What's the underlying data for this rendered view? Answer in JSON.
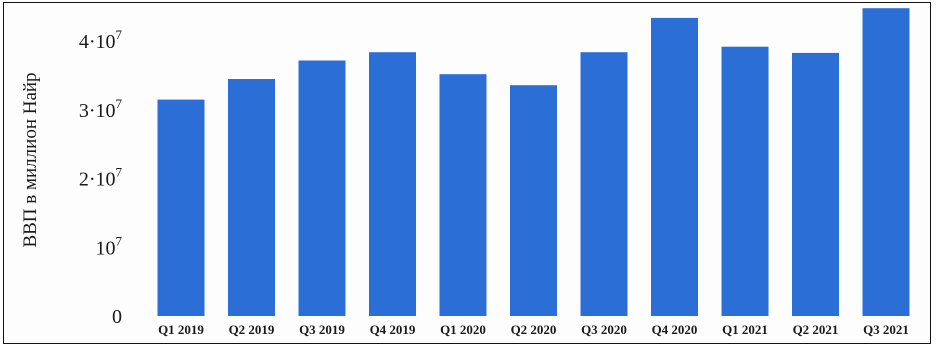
{
  "chart_data": {
    "type": "bar",
    "title": "",
    "xlabel": "",
    "ylabel": "ВВП в миллион Найр",
    "categories": [
      "Q1 2019",
      "Q2 2019",
      "Q3 2019",
      "Q4 2019",
      "Q1 2020",
      "Q2 2020",
      "Q3 2020",
      "Q4 2020",
      "Q1 2021",
      "Q2 2021",
      "Q3 2021"
    ],
    "values": [
      31500000,
      34500000,
      37200000,
      38400000,
      35200000,
      33600000,
      38400000,
      43400000,
      39200000,
      38300000,
      44800000
    ],
    "ylim": [
      0,
      46000000
    ],
    "yticks": [
      {
        "value": 0,
        "mantissa": "0",
        "exponent": ""
      },
      {
        "value": 10000000,
        "mantissa": "10",
        "exponent": "7"
      },
      {
        "value": 20000000,
        "mantissa": "2·10",
        "exponent": "7"
      },
      {
        "value": 30000000,
        "mantissa": "3·10",
        "exponent": "7"
      },
      {
        "value": 40000000,
        "mantissa": "4·10",
        "exponent": "7"
      }
    ],
    "grid": false,
    "bar_color": "#2b6fd6"
  }
}
